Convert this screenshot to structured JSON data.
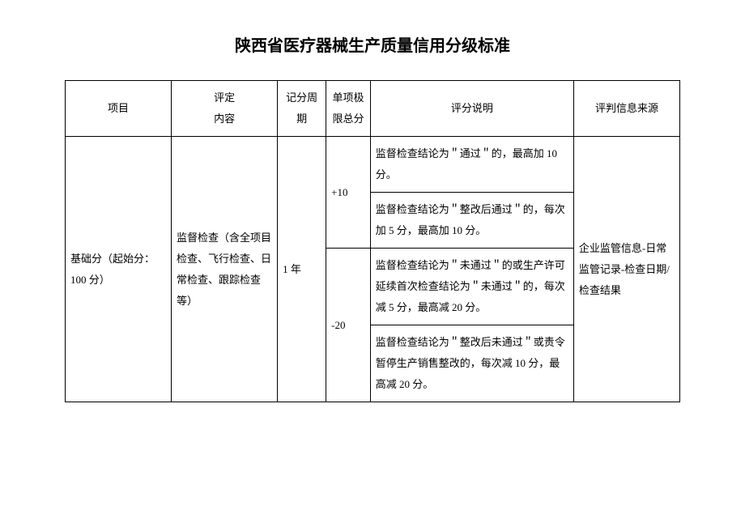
{
  "title": "陕西省医疗器械生产质量信用分级标准",
  "headers": {
    "item": "项目",
    "content_top": "评定",
    "content_bottom": "内容",
    "period": "记分周期",
    "limit_top": "单项极",
    "limit_bottom": "限总分",
    "description": "评分说明",
    "source": "评判信息来源"
  },
  "rows": {
    "item": "基础分（起始分：100 分）",
    "content": "监督检查（含全项目检查、飞行检查、日常检查、跟踪检查等）",
    "period": "1 年",
    "limit_plus": "+10",
    "limit_minus": "-20",
    "desc1": "监督检查结论为＂通过＂的，最高加 10 分。",
    "desc2": "监督检查结论为＂整改后通过＂的，每次加 5 分，最高加 10 分。",
    "desc3": "监督检查结论为＂未通过＂的或生产许可延续首次检查结论为＂未通过＂的，每次减 5 分，最高减 20 分。",
    "desc4": "监督检查结论为＂整改后未通过＂或责令暂停生产销售整改的，每次减 10 分，最高减 20 分。",
    "source": "企业监管信息-日常监管记录-检查日期/检查结果"
  }
}
